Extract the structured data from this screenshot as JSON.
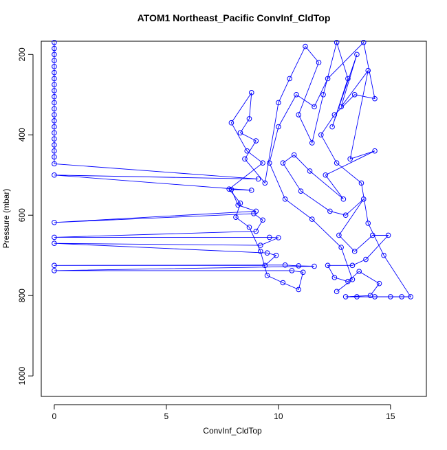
{
  "chart_data": {
    "type": "scatter-line",
    "title": "ATOM1 Northeast_Pacific ConvInf_CldTop",
    "x_label": "ConvInf_CldTop",
    "y_label": "Pressure (mbar)",
    "color": "#0000ff",
    "y_reversed": true,
    "xlim": [
      -0.58,
      16.6
    ],
    "ylim": [
      167,
      1051
    ],
    "xticks": [
      0,
      5,
      10,
      15
    ],
    "yticks": [
      200,
      400,
      600,
      800,
      1000
    ],
    "x": [
      0,
      0,
      0,
      0,
      0,
      0,
      0,
      0,
      0,
      0,
      0,
      0,
      0,
      0,
      0,
      0,
      0,
      0,
      0,
      0,
      0,
      9.1,
      0,
      8.8,
      7.9,
      8.2,
      9.0,
      0,
      8.9,
      9.3,
      9.0,
      0,
      9.6,
      10.0,
      9.2,
      0,
      9.5,
      9.9,
      9.4,
      0,
      10.3,
      10.9,
      11.6,
      0,
      10.6,
      11.1,
      10.9,
      10.2,
      9.5,
      9.2,
      8.7,
      8.1,
      8.3,
      7.8,
      9.3,
      8.6,
      7.9,
      8.8,
      8.7,
      8.3,
      9.0,
      8.5,
      9.4,
      10.0,
      10.5,
      11.2,
      11.8,
      10.9,
      11.5,
      12.0,
      12.6,
      13.1,
      12.4,
      13.5,
      12.8,
      14.0,
      13.2,
      14.3,
      12.1,
      12.9,
      11.4,
      10.7,
      10.2,
      11.0,
      12.3,
      13.0,
      13.8,
      12.7,
      13.4,
      14.2,
      14.9,
      13.9,
      13.3,
      12.2,
      12.5,
      13.1,
      13.6,
      14.5,
      14.1,
      13.0,
      13.5,
      14.3,
      15.0,
      15.5,
      15.9,
      14.7,
      14.0,
      13.7,
      12.6,
      11.9,
      12.5,
      13.4,
      14.3,
      13.8,
      12.2,
      11.6,
      10.8,
      10.0,
      9.6,
      10.3,
      11.5,
      12.8,
      13.3,
      12.6
    ],
    "values": [
      170,
      185,
      200,
      215,
      230,
      245,
      260,
      275,
      290,
      305,
      320,
      335,
      350,
      365,
      380,
      395,
      410,
      425,
      440,
      455,
      472,
      510,
      500,
      538,
      536,
      575,
      590,
      618,
      596,
      612,
      640,
      655,
      655,
      656,
      675,
      670,
      694,
      700,
      725,
      725,
      724,
      726,
      727,
      738,
      738,
      742,
      785,
      768,
      750,
      690,
      630,
      605,
      570,
      535,
      470,
      440,
      370,
      295,
      360,
      395,
      415,
      460,
      520,
      320,
      260,
      180,
      220,
      350,
      420,
      300,
      170,
      260,
      380,
      200,
      330,
      240,
      460,
      440,
      500,
      560,
      490,
      450,
      470,
      540,
      590,
      600,
      560,
      650,
      690,
      650,
      650,
      710,
      725,
      725,
      755,
      765,
      740,
      770,
      800,
      803,
      803,
      803,
      803,
      803,
      803,
      700,
      620,
      520,
      470,
      400,
      350,
      300,
      310,
      170,
      260,
      330,
      300,
      380,
      470,
      560,
      610,
      680,
      760,
      790
    ]
  }
}
